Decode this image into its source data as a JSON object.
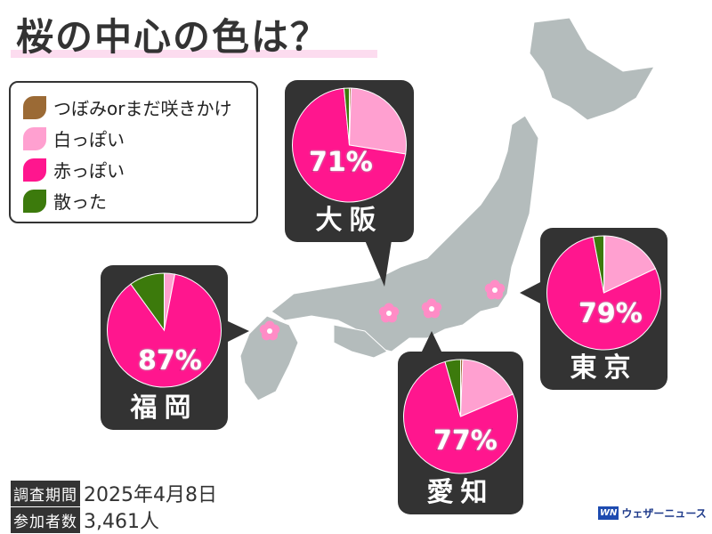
{
  "title": "桜の中心の色は？",
  "legend": [
    {
      "label": "つぼみorまだ咲きかけ",
      "color": "#9b6a35"
    },
    {
      "label": "白っぽい",
      "color": "#ffa0d0"
    },
    {
      "label": "赤っぽい",
      "color": "#ff168e"
    },
    {
      "label": "散った",
      "color": "#3c7a0c"
    }
  ],
  "chart_data": [
    {
      "type": "pie",
      "city": "大阪",
      "label": "71%",
      "categories": [
        "つぼみorまだ咲きかけ",
        "白っぽい",
        "赤っぽい",
        "散った"
      ],
      "values": [
        0.5,
        27,
        71,
        1.5
      ]
    },
    {
      "type": "pie",
      "city": "東京",
      "label": "79%",
      "categories": [
        "つぼみorまだ咲きかけ",
        "白っぽい",
        "赤っぽい",
        "散った"
      ],
      "values": [
        0.3,
        17.7,
        79,
        3
      ]
    },
    {
      "type": "pie",
      "city": "愛知",
      "label": "77%",
      "categories": [
        "つぼみorまだ咲きかけ",
        "白っぽい",
        "赤っぽい",
        "散った"
      ],
      "values": [
        0.6,
        18,
        77,
        4.4
      ]
    },
    {
      "type": "pie",
      "city": "福岡",
      "label": "87%",
      "categories": [
        "つぼみorまだ咲きかけ",
        "白っぽい",
        "赤っぽい",
        "散った"
      ],
      "values": [
        0,
        3,
        87,
        10
      ]
    }
  ],
  "meta": {
    "period_label": "調査期間",
    "period": "2025年4月8日",
    "participants_label": "参加者数",
    "participants": "3,461人"
  },
  "logo": {
    "mark": "WN",
    "text": "ウェザーニュース"
  }
}
